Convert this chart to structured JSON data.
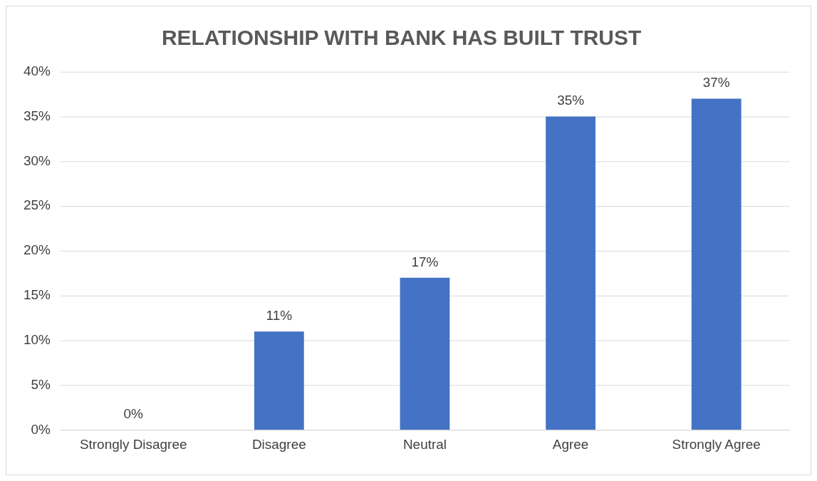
{
  "chart_data": {
    "type": "bar",
    "title": "RELATIONSHIP WITH BANK HAS BUILT TRUST",
    "categories": [
      "Strongly Disagree",
      "Disagree",
      "Neutral",
      "Agree",
      "Strongly Agree"
    ],
    "values": [
      0,
      11,
      17,
      35,
      37
    ],
    "value_labels": [
      "0%",
      "11%",
      "17%",
      "35%",
      "37%"
    ],
    "color": "#4472c4",
    "ylim": [
      0,
      40
    ],
    "yticks": [
      {
        "value": 0,
        "label": "0%"
      },
      {
        "value": 5,
        "label": "5%"
      },
      {
        "value": 10,
        "label": "10%"
      },
      {
        "value": 15,
        "label": "15%"
      },
      {
        "value": 20,
        "label": "20%"
      },
      {
        "value": 25,
        "label": "25%"
      },
      {
        "value": 30,
        "label": "30%"
      },
      {
        "value": 35,
        "label": "35%"
      },
      {
        "value": 40,
        "label": "40%"
      }
    ],
    "grid": "y",
    "legend": false
  }
}
